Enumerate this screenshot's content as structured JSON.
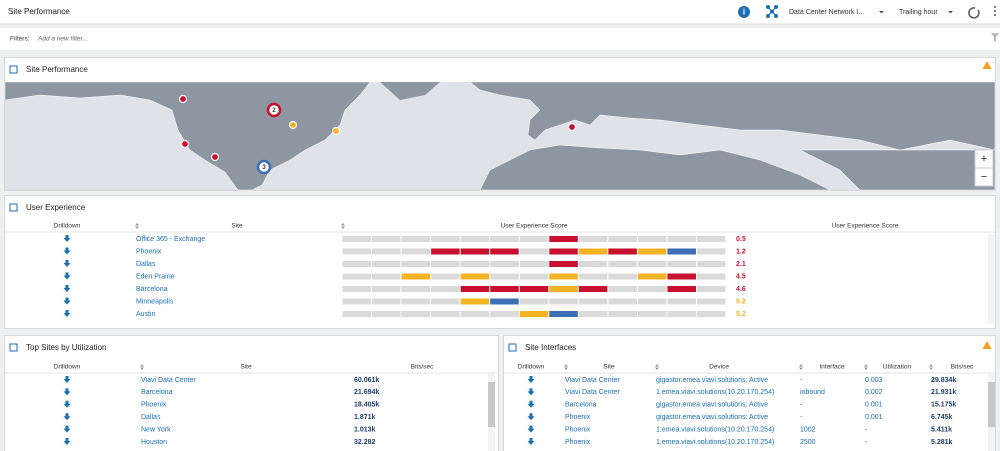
{
  "header": {
    "title": "Site Performance",
    "network": "Data Center Network I...",
    "time_range": "Trailing hour"
  },
  "filters": {
    "label": "Filters:",
    "placeholder": "Add a new filter..."
  },
  "map_panel": {
    "title": "Site Performance",
    "clusters": [
      "2",
      "3"
    ],
    "zoom_in": "+",
    "zoom_out": "−"
  },
  "user_experience": {
    "title": "User Experience",
    "columns": [
      "Drilldown",
      "Site",
      "User Experience Score",
      "User Experience Score"
    ],
    "rows": [
      {
        "site": "Office 365 - Exchange",
        "score": "0.5",
        "score_color": "#c8102e",
        "timeline": [
          "#dadada",
          "#dadada",
          "#dadada",
          "#dadada",
          "#dadada",
          "#dadada",
          "#dadada",
          "#c8102e",
          "#dadada",
          "#dadada",
          "#dadada",
          "#dadada",
          "#dadada"
        ]
      },
      {
        "site": "Phoenix",
        "score": "1.2",
        "score_color": "#c8102e",
        "timeline": [
          "#dadada",
          "#dadada",
          "#dadada",
          "#c8102e",
          "#c8102e",
          "#c8102e",
          "#dadada",
          "#c8102e",
          "#f5b324",
          "#c8102e",
          "#f5b324",
          "#3d6fb5",
          "#dadada"
        ]
      },
      {
        "site": "Dallas",
        "score": "2.1",
        "score_color": "#c8102e",
        "timeline": [
          "#dadada",
          "#dadada",
          "#dadada",
          "#dadada",
          "#dadada",
          "#dadada",
          "#dadada",
          "#c8102e",
          "#dadada",
          "#dadada",
          "#dadada",
          "#dadada",
          "#dadada"
        ]
      },
      {
        "site": "Eden Prairie",
        "score": "4.5",
        "score_color": "#c8102e",
        "timeline": [
          "#dadada",
          "#dadada",
          "#f5b324",
          "#dadada",
          "#f5b324",
          "#dadada",
          "#dadada",
          "#f5b324",
          "#dadada",
          "#dadada",
          "#f5b324",
          "#c8102e",
          "#dadada"
        ]
      },
      {
        "site": "Barcelona",
        "score": "4.6",
        "score_color": "#c8102e",
        "timeline": [
          "#dadada",
          "#dadada",
          "#dadada",
          "#dadada",
          "#c8102e",
          "#c8102e",
          "#c8102e",
          "#f5b324",
          "#c8102e",
          "#dadada",
          "#dadada",
          "#c8102e",
          "#dadada"
        ]
      },
      {
        "site": "Minneapolis",
        "score": "5.2",
        "score_color": "#f5b324",
        "timeline": [
          "#dadada",
          "#dadada",
          "#dadada",
          "#dadada",
          "#f5b324",
          "#3d6fb5",
          "#dadada",
          "#dadada",
          "#dadada",
          "#dadada",
          "#dadada",
          "#dadada",
          "#dadada"
        ]
      },
      {
        "site": "Austin",
        "score": "5.2",
        "score_color": "#f5b324",
        "timeline": [
          "#dadada",
          "#dadada",
          "#dadada",
          "#dadada",
          "#dadada",
          "#dadada",
          "#f5b324",
          "#3d6fb5",
          "#dadada",
          "#dadada",
          "#dadada",
          "#dadada",
          "#dadada"
        ]
      }
    ]
  },
  "top_sites": {
    "title": "Top Sites by Utilization",
    "columns": [
      "Drilldown",
      "Site",
      "Bits/sec"
    ],
    "rows": [
      [
        "Viavi Data Center",
        "60.061k"
      ],
      [
        "Barcelona",
        "21.694k"
      ],
      [
        "Phoenix",
        "18.405k"
      ],
      [
        "Dallas",
        "1.871k"
      ],
      [
        "New York",
        "1.013k"
      ],
      [
        "Houston",
        "32.282"
      ]
    ]
  },
  "site_interfaces": {
    "title": "Site Interfaces",
    "columns": [
      "Drilldown",
      "Site",
      "Device",
      "Interface",
      "Utilization",
      "Bits/sec"
    ],
    "rows": [
      [
        "Viavi Data Center",
        "gigastor.emea.viavi.solutions: Active",
        "-",
        "0.003",
        "29.834k"
      ],
      [
        "Viavi Data Center",
        "1.emea.viavi.solutions(10.20.170.254)",
        "inbound",
        "0.002",
        "21.931k"
      ],
      [
        "Barcelona",
        "gigastor.emea.viavi.solutions: Active",
        "-",
        "0.001",
        "15.175k"
      ],
      [
        "Phoenix",
        "gigastor.emea.viavi.solutions: Active",
        "-",
        "0.001",
        "6.745k"
      ],
      [
        "Phoenix",
        "1.emea.viavi.solutions(10.20.170.254)",
        "1002",
        "-",
        "5.411k"
      ],
      [
        "Phoenix",
        "1.emea.viavi.solutions(10.20.170.254)",
        "2500",
        "-",
        "5.281k"
      ]
    ]
  }
}
